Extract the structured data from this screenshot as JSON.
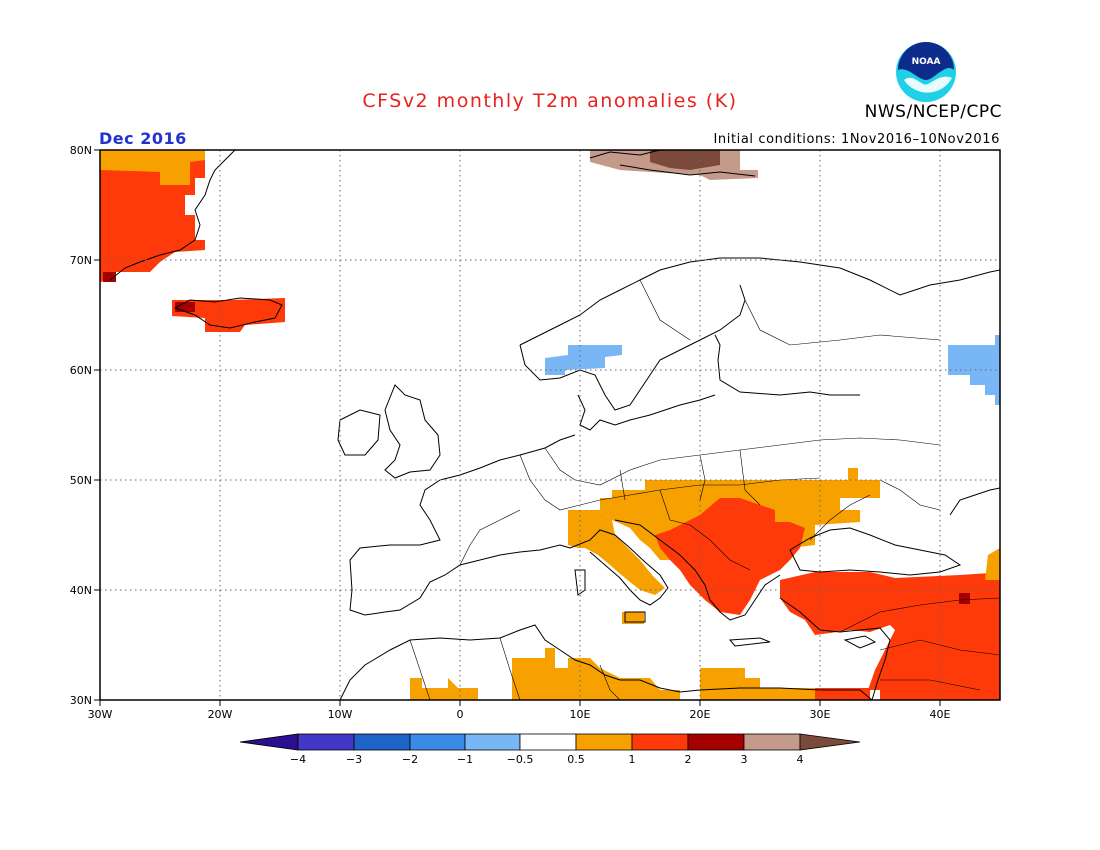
{
  "header": {
    "title": "CFSv2 monthly T2m anomalies (K)",
    "agency": "NWS/NCEP/CPC",
    "month": "Dec 2016",
    "initial_conditions": "Initial conditions: 1Nov2016–10Nov2016",
    "logo_text": "NOAA"
  },
  "map": {
    "lat_labels": [
      "80N",
      "70N",
      "60N",
      "50N",
      "40N",
      "30N"
    ],
    "lat_values": [
      80,
      70,
      60,
      50,
      40,
      30
    ],
    "lon_labels": [
      "30W",
      "20W",
      "10W",
      "0",
      "10E",
      "20E",
      "30E",
      "40E"
    ],
    "lon_values": [
      -30,
      -20,
      -10,
      0,
      10,
      20,
      30,
      40
    ],
    "lon_range": [
      -30,
      45
    ],
    "lat_range": [
      30,
      80
    ],
    "grid": true
  },
  "colorbar": {
    "ticks": [
      "−4",
      "−3",
      "−2",
      "−1",
      "−0.5",
      "0.5",
      "1",
      "2",
      "3",
      "4"
    ],
    "colors": [
      "#2a0f8f",
      "#4238c5",
      "#1e64c8",
      "#3a8ae8",
      "#79b6f6",
      "#ffffff",
      "#f7a100",
      "#ff3a0a",
      "#a50000",
      "#c49a8a",
      "#7b4a3a"
    ]
  },
  "anomaly_regions": [
    {
      "color": "#ff3a0a",
      "label": "Greenland coast warm"
    },
    {
      "color": "#f7a100",
      "label": "Balkans and Carpathians warm"
    },
    {
      "color": "#ff3a0a",
      "label": "Balkans and Black Sea warm"
    },
    {
      "color": "#ff3a0a",
      "label": "Turkey and Levant warm"
    },
    {
      "color": "#f7a100",
      "label": "North Africa warm"
    },
    {
      "color": "#c49a8a",
      "label": "Svalbard very warm"
    },
    {
      "color": "#79b6f6",
      "label": "Norway cool"
    },
    {
      "color": "#79b6f6",
      "label": "Russia cool"
    }
  ]
}
